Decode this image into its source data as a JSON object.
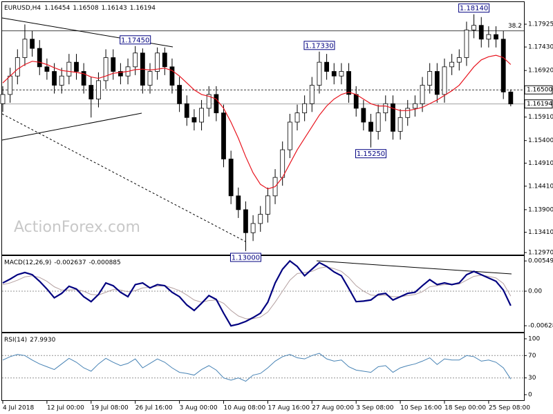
{
  "chart_data": [
    {
      "type": "candlestick",
      "title": "EURUSD,H4",
      "categories": [
        "4 Jul 2018",
        null,
        null,
        null,
        null,
        null,
        "12 Jul 00:00",
        null,
        null,
        null,
        null,
        null,
        "19 Jul 08:00",
        null,
        null,
        null,
        null,
        null,
        "26 Jul 16:00",
        null,
        null,
        null,
        null,
        null,
        "3 Aug 00:00",
        null,
        null,
        null,
        null,
        null,
        "10 Aug 08:00",
        null,
        null,
        null,
        null,
        null,
        "17 Aug 16:00",
        null,
        null,
        null,
        null,
        null,
        "27 Aug 00:00",
        null,
        null,
        null,
        null,
        null,
        "3 Sep 08:00",
        null,
        null,
        null,
        null,
        null,
        "10 Sep 16:00",
        null,
        null,
        null,
        null,
        null,
        "18 Sep 00:00",
        null,
        null,
        null,
        null,
        null,
        "25 Sep 08:00",
        null,
        null,
        null
      ],
      "open": [
        1.162,
        1.164,
        1.168,
        1.172,
        1.176,
        1.174,
        1.17,
        1.169,
        1.166,
        1.168,
        1.171,
        1.169,
        1.166,
        1.163,
        1.167,
        1.172,
        1.169,
        1.168,
        1.17,
        1.173,
        1.166,
        1.169,
        1.173,
        1.17,
        1.166,
        1.162,
        1.159,
        1.158,
        1.161,
        1.164,
        1.16,
        1.15,
        1.142,
        1.139,
        1.134,
        1.136,
        1.138,
        1.142,
        1.146,
        1.152,
        1.158,
        1.16,
        1.162,
        1.166,
        1.171,
        1.169,
        1.168,
        1.169,
        1.164,
        1.161,
        1.158,
        1.156,
        1.16,
        1.162,
        1.156,
        1.159,
        1.161,
        1.162,
        1.166,
        1.169,
        1.164,
        1.17,
        1.171,
        1.172,
        1.178,
        1.179,
        1.176,
        1.177,
        1.176,
        1.16454
      ],
      "high": [
        1.1658,
        1.1698,
        1.1738,
        1.1792,
        1.1778,
        1.1758,
        1.1718,
        1.1708,
        1.1698,
        1.1728,
        1.1728,
        1.1708,
        1.1678,
        1.1688,
        1.1738,
        1.1738,
        1.1708,
        1.1718,
        1.1745,
        1.174,
        1.1708,
        1.1742,
        1.1742,
        1.1718,
        1.1678,
        1.1638,
        1.1608,
        1.1628,
        1.1658,
        1.1658,
        1.1618,
        1.1518,
        1.1438,
        1.1408,
        1.1378,
        1.1398,
        1.1438,
        1.1478,
        1.1538,
        1.1598,
        1.1618,
        1.1638,
        1.1678,
        1.1733,
        1.1728,
        1.1708,
        1.1708,
        1.1708,
        1.1658,
        1.1628,
        1.1598,
        1.1618,
        1.1638,
        1.1638,
        1.1608,
        1.1628,
        1.1638,
        1.1678,
        1.1708,
        1.1708,
        1.1718,
        1.1728,
        1.1738,
        1.1798,
        1.1814,
        1.1808,
        1.1788,
        1.1788,
        1.1778,
        1.16508
      ],
      "low": [
        1.1602,
        1.1622,
        1.1662,
        1.1702,
        1.1722,
        1.1682,
        1.1672,
        1.1642,
        1.1642,
        1.1662,
        1.1672,
        1.1642,
        1.159,
        1.1612,
        1.1652,
        1.1672,
        1.1662,
        1.1662,
        1.1682,
        1.1642,
        1.1642,
        1.1672,
        1.1682,
        1.1642,
        1.1602,
        1.1572,
        1.1562,
        1.1562,
        1.1592,
        1.1582,
        1.1482,
        1.1402,
        1.1372,
        1.13,
        1.1322,
        1.1342,
        1.1362,
        1.1402,
        1.1442,
        1.1502,
        1.1562,
        1.1582,
        1.1602,
        1.1642,
        1.1672,
        1.1662,
        1.1662,
        1.1622,
        1.1592,
        1.1562,
        1.1525,
        1.1542,
        1.1582,
        1.1542,
        1.1542,
        1.1572,
        1.1592,
        1.1602,
        1.1642,
        1.1622,
        1.1622,
        1.1682,
        1.1692,
        1.1702,
        1.1762,
        1.1742,
        1.1742,
        1.1742,
        1.163,
        1.16143
      ],
      "close": [
        1.164,
        1.168,
        1.172,
        1.176,
        1.174,
        1.17,
        1.169,
        1.166,
        1.168,
        1.171,
        1.169,
        1.166,
        1.163,
        1.167,
        1.172,
        1.169,
        1.168,
        1.17,
        1.173,
        1.166,
        1.169,
        1.173,
        1.17,
        1.166,
        1.162,
        1.159,
        1.158,
        1.161,
        1.164,
        1.16,
        1.15,
        1.142,
        1.139,
        1.134,
        1.136,
        1.138,
        1.142,
        1.146,
        1.152,
        1.158,
        1.16,
        1.162,
        1.166,
        1.171,
        1.169,
        1.168,
        1.169,
        1.164,
        1.161,
        1.158,
        1.156,
        1.16,
        1.162,
        1.156,
        1.159,
        1.161,
        1.162,
        1.166,
        1.169,
        1.164,
        1.17,
        1.171,
        1.172,
        1.178,
        1.179,
        1.176,
        1.177,
        1.176,
        1.16454,
        1.16194
      ],
      "series": [
        {
          "color": "#e8141e",
          "values": [
            1.1665,
            1.168,
            1.1695,
            1.1705,
            1.1712,
            1.171,
            1.1705,
            1.1698,
            1.1692,
            1.169,
            1.1688,
            1.1685,
            1.1678,
            1.1675,
            1.168,
            1.1686,
            1.1688,
            1.169,
            1.1694,
            1.1695,
            1.1693,
            1.1695,
            1.1697,
            1.1692,
            1.168,
            1.1665,
            1.165,
            1.164,
            1.1636,
            1.163,
            1.161,
            1.158,
            1.1545,
            1.1505,
            1.147,
            1.1445,
            1.1435,
            1.144,
            1.146,
            1.149,
            1.152,
            1.1545,
            1.157,
            1.1595,
            1.1615,
            1.163,
            1.164,
            1.1645,
            1.164,
            1.163,
            1.162,
            1.1615,
            1.1615,
            1.161,
            1.1605,
            1.1605,
            1.1608,
            1.1612,
            1.162,
            1.1628,
            1.1638,
            1.1648,
            1.166,
            1.168,
            1.17,
            1.1715,
            1.1722,
            1.1725,
            1.172,
            1.1705
          ]
        }
      ],
      "ylim": [
        1.12925,
        1.18405
      ],
      "yticks": [
        1.17925,
        {
          "value": 1.1743,
          "label": "1.17430"
        },
        {
          "value": 1.1692,
          "label": "1.16920"
        },
        {
          "value": 1.1591,
          "label": "1.15910"
        },
        {
          "value": 1.154,
          "label": "1.15400"
        },
        {
          "value": 1.1491,
          "label": "1.14910"
        },
        {
          "value": 1.1441,
          "label": "1.14410"
        },
        {
          "value": 1.139,
          "label": "1.13900"
        },
        {
          "value": 1.1341,
          "label": "1.13410"
        },
        {
          "value": 1.1297,
          "label": "1.12970"
        }
      ],
      "hlines": [
        {
          "value": 1.1778,
          "label": "38.2",
          "style": "solid"
        },
        {
          "value": 1.165,
          "label": "1.16500",
          "style": "dashed"
        }
      ],
      "annotations": [
        {
          "value": 1.1814,
          "label": "1.18140"
        },
        {
          "value": 1.1745,
          "label": "1.17450"
        },
        {
          "value": 1.1733,
          "label": "1.17330"
        },
        {
          "value": 1.1525,
          "label": "1.15250"
        },
        {
          "value": 1.13,
          "label": "1.13000"
        }
      ],
      "watermark": "ActionForex.com"
    },
    {
      "type": "line",
      "title": "MACD(12,26,9)",
      "series": [
        {
          "color": "#000080",
          "values": [
            0.0015,
            0.0022,
            0.003,
            0.0034,
            0.003,
            0.0018,
            0.0004,
            -0.0012,
            -0.0004,
            0.0009,
            0.0004,
            -0.001,
            -0.0019,
            -0.0006,
            0.0015,
            0.001,
            -0.0002,
            -0.001,
            0.0012,
            0.0015,
            0.0006,
            0.0012,
            0.001,
            -0.0002,
            -0.001,
            -0.0025,
            -0.0035,
            -0.0022,
            -0.0008,
            -0.0015,
            -0.004,
            -0.0063,
            -0.006,
            -0.0055,
            -0.0048,
            -0.004,
            -0.002,
            0.0015,
            0.004,
            0.0055,
            0.0045,
            0.0028,
            0.004,
            0.0052,
            0.0045,
            0.0035,
            0.0028,
            0.0005,
            -0.0019,
            -0.0018,
            -0.0016,
            -0.0006,
            -0.0004,
            -0.0016,
            -0.001,
            -0.0004,
            -0.0002,
            0.001,
            0.0021,
            0.0012,
            0.0015,
            0.0012,
            0.0015,
            0.003,
            0.0036,
            0.003,
            0.0024,
            0.0018,
            0.0002,
            -0.002637
          ]
        },
        {
          "color": "#b4a0a0",
          "values": [
            0.0012,
            0.0015,
            0.002,
            0.0026,
            0.0028,
            0.0025,
            0.0018,
            0.0008,
            0.0002,
            0.0002,
            0.0003,
            0.0,
            -0.0006,
            -0.0007,
            -0.0002,
            0.0003,
            0.0002,
            -0.0001,
            0.0001,
            0.0006,
            0.0007,
            0.0009,
            0.001,
            0.0006,
            0.0001,
            -0.0007,
            -0.0016,
            -0.002,
            -0.0017,
            -0.0016,
            -0.0022,
            -0.0035,
            -0.0045,
            -0.005,
            -0.005,
            -0.0047,
            -0.0038,
            -0.002,
            0.0,
            0.002,
            0.0032,
            0.0034,
            0.0036,
            0.0042,
            0.0044,
            0.0041,
            0.0036,
            0.0025,
            0.001,
            0.0,
            -0.0007,
            -0.0008,
            -0.0007,
            -0.001,
            -0.001,
            -0.0008,
            -0.0006,
            -0.0001,
            0.0008,
            0.001,
            0.0012,
            0.0012,
            0.0013,
            0.002,
            0.0027,
            0.0029,
            0.0027,
            0.0024,
            0.0014,
            -0.000885
          ]
        }
      ],
      "ylim": [
        -0.0074,
        0.0064
      ],
      "yticks": [
        0.005498,
        {
          "value": 0,
          "label": "0.00"
        },
        -0.006283
      ],
      "levels": [
        0
      ]
    },
    {
      "type": "line",
      "title": "RSI(14)",
      "readout": "27.9930",
      "series": [
        {
          "color": "#4682b4",
          "values": [
            62,
            68,
            72,
            70,
            62,
            55,
            50,
            45,
            55,
            65,
            58,
            48,
            42,
            55,
            65,
            58,
            52,
            56,
            64,
            48,
            56,
            64,
            58,
            48,
            40,
            38,
            35,
            45,
            52,
            44,
            30,
            26,
            30,
            24,
            35,
            38,
            48,
            60,
            68,
            72,
            66,
            64,
            70,
            74,
            64,
            60,
            62,
            50,
            44,
            42,
            40,
            50,
            52,
            40,
            48,
            52,
            55,
            60,
            66,
            54,
            64,
            62,
            62,
            70,
            68,
            60,
            62,
            58,
            48,
            27.993
          ]
        }
      ],
      "ylim": [
        -9.9,
        109.9
      ],
      "yticks": [
        100,
        70,
        30,
        0
      ],
      "levels": [
        70,
        30
      ]
    }
  ]
}
